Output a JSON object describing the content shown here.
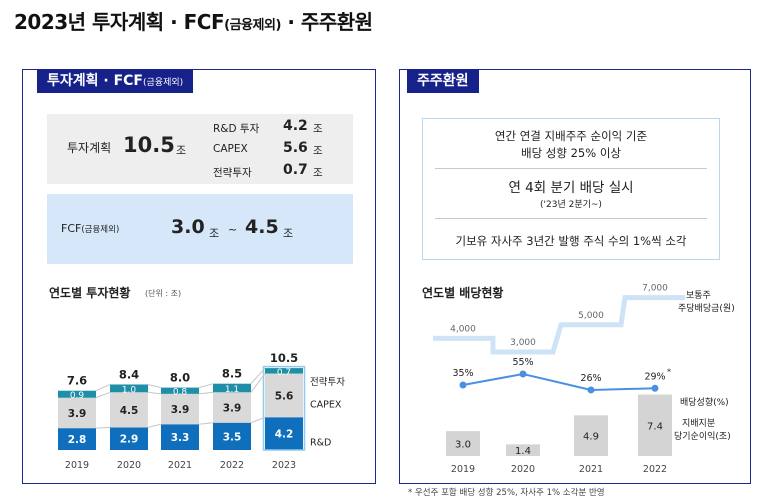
{
  "title": {
    "main": "2023년 투자계획 · FCF",
    "small": "(금융제외)",
    "tail": " ·  주주환원"
  },
  "left_panel": {
    "tab_main": "투자계획 · FCF",
    "tab_small": "(금융제외)",
    "invest": {
      "label": "투자계획",
      "value": "10.5",
      "unit": "조",
      "items": [
        {
          "label": "R&D 투자",
          "value": "4.2",
          "unit": "조"
        },
        {
          "label": "CAPEX",
          "value": "5.6",
          "unit": "조"
        },
        {
          "label": "전략투자",
          "value": "0.7",
          "unit": "조"
        }
      ]
    },
    "fcf": {
      "label": "FCF",
      "label_small": "(금융제외)",
      "low": "3.0",
      "high": "4.5",
      "unit": "조",
      "sep": "~"
    },
    "chart_title": "연도별 투자현황",
    "chart_unit": "(단위 : 조)"
  },
  "right_panel": {
    "tab": "주주환원",
    "policies": {
      "p1_line1": "연간 연결 지배주주 순이익 기준",
      "p1_line2": "배당 성향 25% 이상",
      "p2_line1": "연 4회 분기 배당 실시",
      "p2_line2": "('23년 2분기~)",
      "p3": "기보유 자사주 3년간 발행 주식 수의 1%씩 소각"
    },
    "chart_title": "연도별 배당현황"
  },
  "footnote": "* 우선주 포함 배당 성향 25%, 자사주 1% 소각분 반영",
  "chart_data": [
    {
      "type": "bar",
      "stacked": true,
      "title": "연도별 투자현황",
      "unit": "(단위 : 조)",
      "categories": [
        "2019",
        "2020",
        "2021",
        "2022",
        "2023"
      ],
      "totals": [
        "7.6",
        "8.4",
        "8.0",
        "8.5",
        "10.5"
      ],
      "series": [
        {
          "name": "R&D",
          "values": [
            2.8,
            2.9,
            3.3,
            3.5,
            4.2
          ],
          "labels": [
            "2.8",
            "2.9",
            "3.3",
            "3.5",
            "4.2"
          ],
          "color": "#0f6fbd"
        },
        {
          "name": "CAPEX",
          "values": [
            3.9,
            4.5,
            3.9,
            3.9,
            5.6
          ],
          "labels": [
            "3.9",
            "4.5",
            "3.9",
            "3.9",
            "5.6"
          ],
          "color": "#d9d9d9"
        },
        {
          "name": "전략투자",
          "values": [
            0.9,
            1.0,
            0.8,
            1.1,
            0.7
          ],
          "labels": [
            "0.9",
            "1.0",
            "0.8",
            "1.1",
            "0.7"
          ],
          "color": "#1f8fa8"
        }
      ],
      "colors": {
        "connector": "#c6c6c6",
        "last_bar_accent": "#8ec9f0"
      }
    },
    {
      "type": "bar+line",
      "title": "연도별 배당현황",
      "categories": [
        "2019",
        "2020",
        "2021",
        "2022"
      ],
      "bars": {
        "name": "지배지분 당기순이익",
        "unit": "(조)",
        "values": [
          3.0,
          1.4,
          4.9,
          7.4
        ],
        "labels": [
          "3.0",
          "1.4",
          "4.9",
          "7.4"
        ],
        "color": "#d4d4d4"
      },
      "payout": {
        "name": "배당성향",
        "unit": "(%)",
        "values": [
          35,
          55,
          26,
          29
        ],
        "labels": [
          "35%",
          "55%",
          "26%",
          "29%"
        ],
        "marker": "*",
        "color": "#4a90e2"
      },
      "dividend": {
        "name": "보통주 주당배당금",
        "unit": "(원)",
        "values": [
          4000,
          3000,
          5000,
          7000
        ],
        "labels": [
          "4,000",
          "3,000",
          "5,000",
          "7,000"
        ],
        "color": "#cfe3f6"
      }
    }
  ]
}
